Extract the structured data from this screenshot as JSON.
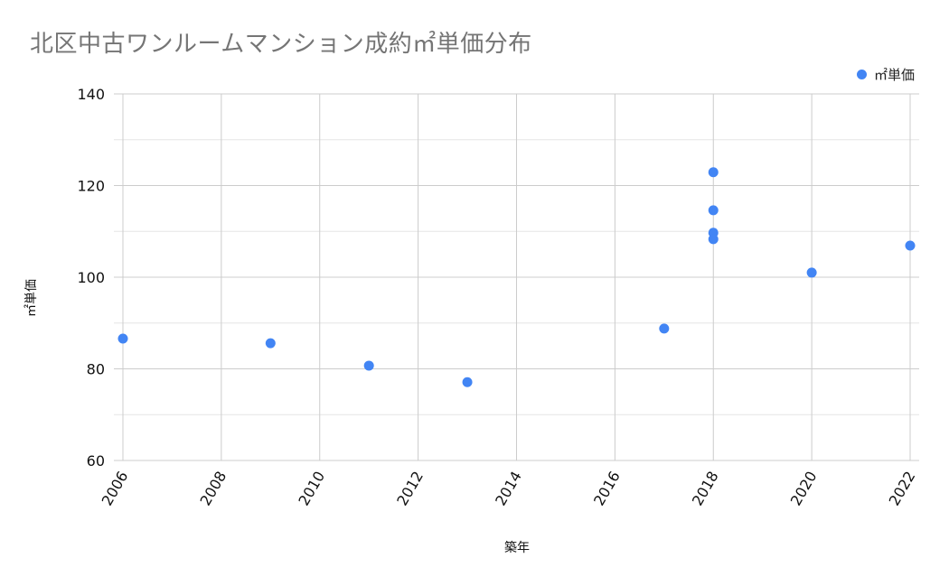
{
  "title": "北区中古ワンルームマンション成約㎡単価分布",
  "legend": {
    "items": [
      {
        "label": "㎡単価",
        "color": "#4285f4"
      }
    ],
    "position": "top-right"
  },
  "axes": {
    "xlabel": "築年",
    "ylabel": "㎡単価",
    "x_ticks": [
      "2006",
      "2008",
      "2010",
      "2012",
      "2014",
      "2016",
      "2018",
      "2020",
      "2022"
    ],
    "y_ticks": [
      "60",
      "80",
      "100",
      "120",
      "140"
    ]
  },
  "chart_data": {
    "type": "scatter",
    "title": "北区中古ワンルームマンション成約㎡単価分布",
    "xlabel": "築年",
    "ylabel": "㎡単価",
    "xlim": [
      2006,
      2022.2
    ],
    "ylim": [
      60,
      140
    ],
    "x_ticks": [
      2006,
      2008,
      2010,
      2012,
      2014,
      2016,
      2018,
      2020,
      2022
    ],
    "y_ticks": [
      60,
      80,
      100,
      120,
      140
    ],
    "y_minor_step": 10,
    "grid": true,
    "legend_position": "top-right",
    "series": [
      {
        "name": "㎡単価",
        "color": "#4285f4",
        "points": [
          {
            "x": 2006,
            "y": 86.6
          },
          {
            "x": 2009,
            "y": 85.6
          },
          {
            "x": 2011,
            "y": 80.7
          },
          {
            "x": 2013,
            "y": 77.1
          },
          {
            "x": 2017,
            "y": 88.8
          },
          {
            "x": 2018,
            "y": 122.9
          },
          {
            "x": 2018,
            "y": 114.6
          },
          {
            "x": 2018,
            "y": 109.7
          },
          {
            "x": 2018,
            "y": 108.3
          },
          {
            "x": 2020,
            "y": 101.0
          },
          {
            "x": 2022,
            "y": 106.9
          }
        ]
      }
    ]
  }
}
